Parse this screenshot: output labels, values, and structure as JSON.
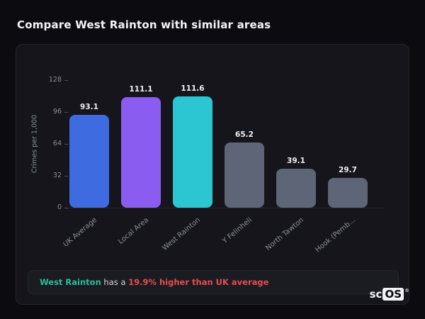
{
  "header": {
    "title": "Compare West Rainton with similar areas"
  },
  "chart_data": {
    "type": "bar",
    "title": "",
    "ylabel": "Crimes per 1,000",
    "categories": [
      "UK Average",
      "Local Area",
      "West Rainton",
      "Y Felinheli",
      "North Tawton",
      "Hook (Pemb..."
    ],
    "values": [
      93.1,
      111.1,
      111.6,
      65.2,
      39.1,
      29.7
    ],
    "value_labels": [
      "93.1",
      "111.1",
      "111.6",
      "65.2",
      "39.1",
      "29.7"
    ],
    "bar_colors": [
      "#3e6be0",
      "#8a5cf0",
      "#2cc5d2",
      "#5d6576",
      "#5d6576",
      "#5d6576"
    ],
    "yticks": [
      0,
      32,
      64,
      96,
      128
    ],
    "ylim": [
      0,
      128
    ],
    "grid": false,
    "legend": "none"
  },
  "note": {
    "highlight": "West Rainton",
    "middle": " has a ",
    "alert": "19.9% higher than UK average"
  },
  "logo": {
    "prefix": "sc",
    "boxed": "OS",
    "registered": "®"
  },
  "colors": {
    "background": "#0c0c10",
    "card": "#15151b",
    "axis_text": "#8b909a",
    "note_green": "#2fbf9a",
    "note_red": "#e34f4f"
  }
}
